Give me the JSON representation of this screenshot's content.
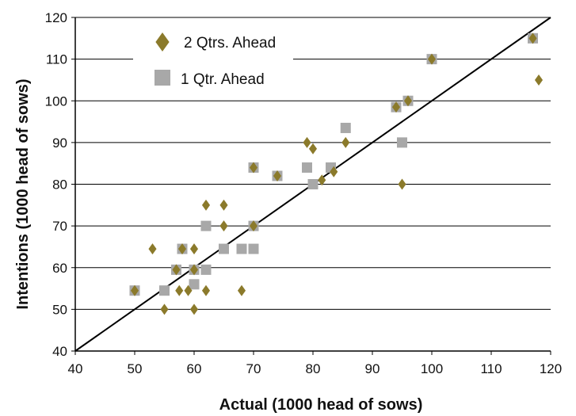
{
  "chart_data": {
    "type": "scatter",
    "title": "",
    "xlabel": "Actual (1000 head of sows)",
    "ylabel": "Intentions (1000 head of sows)",
    "xlim": [
      40,
      120
    ],
    "ylim": [
      40,
      120
    ],
    "x_ticks": [
      "40",
      "50",
      "60",
      "70",
      "80",
      "90",
      "100",
      "110",
      "120"
    ],
    "y_ticks": [
      "40",
      "50",
      "60",
      "70",
      "80",
      "90",
      "100",
      "110",
      "120"
    ],
    "grid": "horizontal",
    "legend_position": "top-left",
    "reference_line": {
      "type": "diagonal",
      "from": [
        40,
        40
      ],
      "to": [
        120,
        120
      ]
    },
    "series": [
      {
        "name": "2 Qtrs. Ahead",
        "marker": "diamond",
        "color": "#8b7a2b",
        "points": [
          [
            50,
            54.5
          ],
          [
            53,
            64.5
          ],
          [
            55,
            50
          ],
          [
            57,
            59.5
          ],
          [
            57.5,
            54.5
          ],
          [
            58,
            64.5
          ],
          [
            59,
            54.5
          ],
          [
            60,
            64.5
          ],
          [
            60,
            59.5
          ],
          [
            60,
            50
          ],
          [
            62,
            75
          ],
          [
            62,
            54.5
          ],
          [
            65,
            75
          ],
          [
            65,
            70
          ],
          [
            68,
            54.5
          ],
          [
            70,
            84
          ],
          [
            70,
            70
          ],
          [
            74,
            82
          ],
          [
            79,
            90
          ],
          [
            80,
            88.5
          ],
          [
            81.5,
            81
          ],
          [
            83.5,
            83
          ],
          [
            85.5,
            90
          ],
          [
            94,
            98.5
          ],
          [
            95,
            80
          ],
          [
            96,
            100
          ],
          [
            100,
            110
          ],
          [
            117,
            115
          ],
          [
            118,
            105
          ]
        ]
      },
      {
        "name": "1 Qtr. Ahead",
        "marker": "square",
        "color": "#a8a8a8",
        "points": [
          [
            50,
            54.5
          ],
          [
            55,
            54.5
          ],
          [
            57,
            59.5
          ],
          [
            58,
            64.5
          ],
          [
            60,
            59.5
          ],
          [
            60,
            56
          ],
          [
            62,
            70
          ],
          [
            62,
            59.5
          ],
          [
            65,
            64.5
          ],
          [
            68,
            64.5
          ],
          [
            70,
            64.5
          ],
          [
            70,
            70
          ],
          [
            70,
            84
          ],
          [
            74,
            82
          ],
          [
            79,
            84
          ],
          [
            80,
            80
          ],
          [
            83,
            84
          ],
          [
            85.5,
            93.5
          ],
          [
            94,
            98.5
          ],
          [
            95,
            90
          ],
          [
            96,
            100
          ],
          [
            100,
            110
          ],
          [
            117,
            115
          ]
        ]
      }
    ]
  }
}
